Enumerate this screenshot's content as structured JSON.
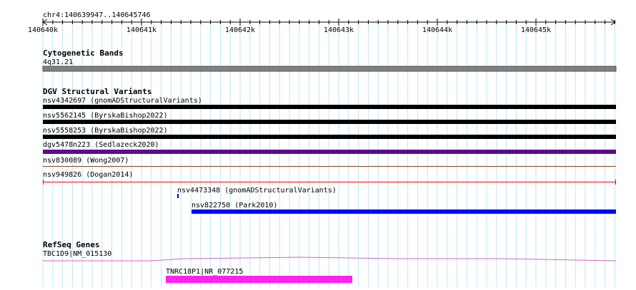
{
  "location": "chr4:140639947..140645746",
  "ruler": {
    "ticks": [
      "140640k",
      "140641k",
      "140642k",
      "140643k",
      "140644k",
      "140645k"
    ]
  },
  "tracks": {
    "cytoband": {
      "title": "Cytogenetic Bands",
      "label": "4q31.21",
      "color": "#808080"
    },
    "dgv": {
      "title": "DGV Structural Variants",
      "features": [
        {
          "label": "nsv4342697 (gnomADStructuralVariants)",
          "color": "#000000"
        },
        {
          "label": "nsv5562145 (ByrskaBishop2022)",
          "color": "#000000"
        },
        {
          "label": "nsv5558253 (ByrskaBishop2022)",
          "color": "#000000"
        },
        {
          "label": "dgv5478n223 (Sedlazeck2020)",
          "color": "#5b0b8c"
        },
        {
          "label": "nsv830089 (Wong2007)",
          "color": "#8b4513"
        },
        {
          "label": "nsv949826 (Dogan2014)",
          "color": "#ff0000"
        },
        {
          "label": "nsv4473348 (gnomADStructuralVariants)",
          "color": "#0000cc"
        },
        {
          "label": "nsv822750 (Park2010)",
          "color": "#0000ff"
        }
      ]
    },
    "refseq": {
      "title": "RefSeq Genes",
      "genes": [
        {
          "label": "TBC1D9|NM_015130",
          "color": "#cc66cc"
        },
        {
          "label": "TNRC18P1|NR_077215",
          "color": "#ff22ee"
        }
      ]
    }
  }
}
